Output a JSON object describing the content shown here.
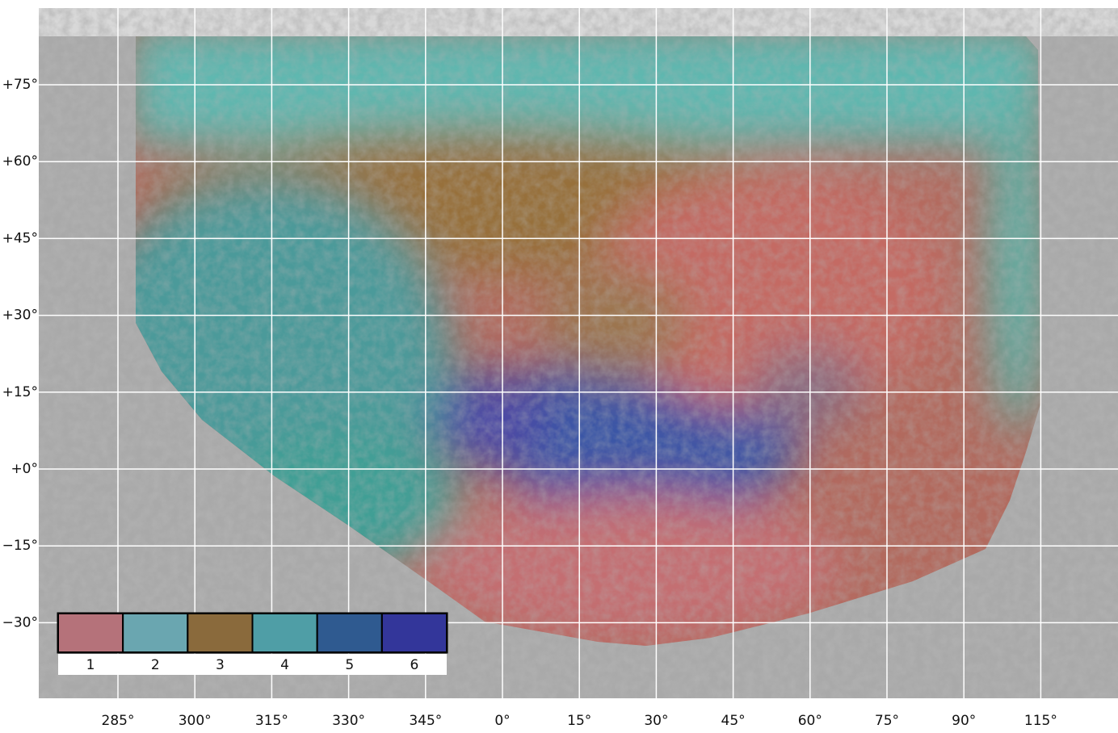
{
  "map": {
    "latitude_labels": [
      "+75°",
      "+60°",
      "+45°",
      "+30°",
      "+15°",
      "+0°",
      "−15°",
      "−30°"
    ],
    "longitude_labels": [
      "285°",
      "300°",
      "315°",
      "330°",
      "345°",
      "0°",
      "15°",
      "30°",
      "45°",
      "60°",
      "75°",
      "90°",
      "115°"
    ]
  },
  "legend": {
    "labels": [
      "1",
      "2",
      "3",
      "4",
      "5",
      "6"
    ]
  }
}
